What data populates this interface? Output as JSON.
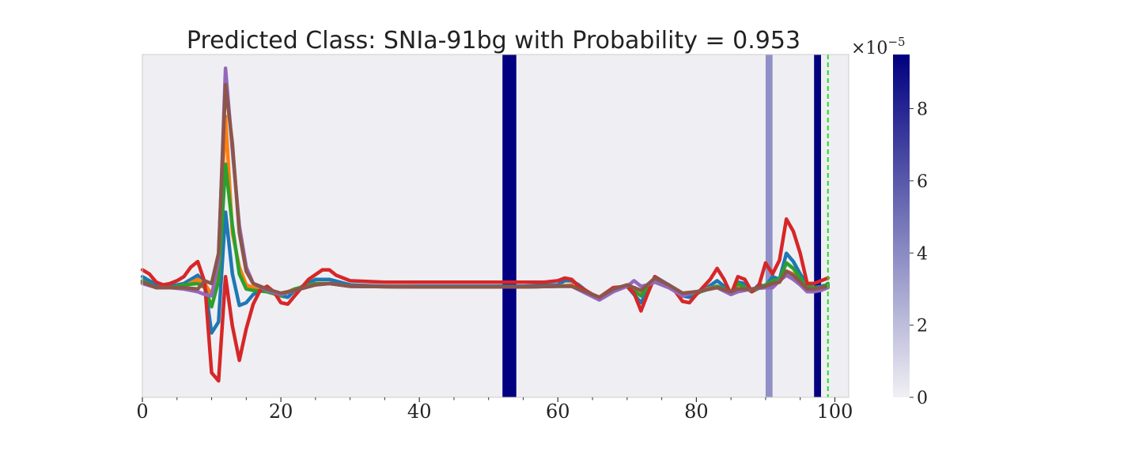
{
  "chart_data": {
    "type": "line",
    "title": "Predicted Class: SNIa-91bg with Probability = 0.953",
    "xlim": [
      0,
      102
    ],
    "ylim": [
      -8,
      17
    ],
    "x_ticks": [
      "0",
      "20",
      "40",
      "60",
      "80",
      "100"
    ],
    "x_tick_values": [
      0,
      20,
      40,
      60,
      80,
      100
    ],
    "x_minor_tick_values": [
      5,
      10,
      15,
      25,
      30,
      35,
      45,
      50,
      55,
      65,
      70,
      75,
      85,
      90,
      95
    ],
    "grid": false,
    "background_color": "#efeff3",
    "legend": "none",
    "attention_bands": [
      {
        "x_start": 52,
        "x_end": 54,
        "weight": 9.5
      },
      {
        "x_start": 90,
        "x_end": 91,
        "weight": 3.8
      },
      {
        "x_start": 97,
        "x_end": 98,
        "weight": 9.5
      }
    ],
    "vertical_marker": {
      "x": 99,
      "color": "#22dd22",
      "style": "dashed"
    },
    "colorbar": {
      "min": 0,
      "max": 9.5,
      "ticks": [
        "0",
        "2",
        "4",
        "6",
        "8"
      ],
      "tick_values": [
        0,
        2,
        4,
        6,
        8
      ],
      "exponent_base": "×10",
      "exponent_power": "−5",
      "color_low": "#f0f0f4",
      "color_high": "#000080"
    },
    "series": [
      {
        "color": "#1f77b4",
        "points": [
          [
            0,
            0.8
          ],
          [
            2,
            0.2
          ],
          [
            4,
            0.1
          ],
          [
            6,
            0.3
          ],
          [
            8,
            0.9
          ],
          [
            9,
            0.3
          ],
          [
            10,
            -3.3
          ],
          [
            11,
            -2.5
          ],
          [
            12,
            5.5
          ],
          [
            13,
            1
          ],
          [
            14,
            -1.3
          ],
          [
            15,
            -1.1
          ],
          [
            16,
            -0.5
          ],
          [
            18,
            0
          ],
          [
            20,
            -0.6
          ],
          [
            21,
            -0.7
          ],
          [
            22,
            -0.2
          ],
          [
            25,
            0.6
          ],
          [
            27,
            0.6
          ],
          [
            30,
            0.2
          ],
          [
            35,
            0.1
          ],
          [
            45,
            0.1
          ],
          [
            55,
            0.1
          ],
          [
            60,
            0.2
          ],
          [
            61,
            0.5
          ],
          [
            62,
            0.5
          ],
          [
            63,
            0.2
          ],
          [
            65,
            -0.6
          ],
          [
            66,
            -0.8
          ],
          [
            68,
            -0.2
          ],
          [
            70,
            0.1
          ],
          [
            72,
            -1.1
          ],
          [
            74,
            0.8
          ],
          [
            76,
            0.2
          ],
          [
            78,
            -0.6
          ],
          [
            79,
            -0.7
          ],
          [
            81,
            -0.2
          ],
          [
            83,
            0.5
          ],
          [
            84,
            0.1
          ],
          [
            85,
            -0.4
          ],
          [
            86,
            0.4
          ],
          [
            87,
            0.3
          ],
          [
            88,
            -0.3
          ],
          [
            89,
            0.2
          ],
          [
            90,
            0.1
          ],
          [
            91,
            0.8
          ],
          [
            92,
            0.6
          ],
          [
            93,
            2.5
          ],
          [
            94,
            1.9
          ],
          [
            95,
            1
          ],
          [
            96,
            0.2
          ],
          [
            97,
            0
          ],
          [
            99,
            0.2
          ]
        ]
      },
      {
        "color": "#ff7f0e",
        "points": [
          [
            0,
            0.4
          ],
          [
            2,
            0
          ],
          [
            4,
            0
          ],
          [
            6,
            0.1
          ],
          [
            8,
            0.6
          ],
          [
            9,
            0.3
          ],
          [
            10,
            -0.5
          ],
          [
            11,
            1.5
          ],
          [
            12,
            12.5
          ],
          [
            13,
            4
          ],
          [
            14,
            1.5
          ],
          [
            15,
            0.2
          ],
          [
            16,
            0
          ],
          [
            18,
            -0.2
          ],
          [
            20,
            -0.5
          ],
          [
            22,
            -0.1
          ],
          [
            25,
            0.3
          ],
          [
            27,
            0.3
          ],
          [
            30,
            0.1
          ],
          [
            40,
            0.05
          ],
          [
            55,
            0.05
          ],
          [
            60,
            0.1
          ],
          [
            62,
            0.2
          ],
          [
            64,
            -0.2
          ],
          [
            66,
            -0.8
          ],
          [
            68,
            -0.2
          ],
          [
            70,
            0.1
          ],
          [
            72,
            -0.4
          ],
          [
            74,
            0.6
          ],
          [
            76,
            0.2
          ],
          [
            78,
            -0.5
          ],
          [
            80,
            -0.3
          ],
          [
            83,
            0.1
          ],
          [
            85,
            -0.3
          ],
          [
            86,
            0.1
          ],
          [
            88,
            -0.1
          ],
          [
            90,
            0.1
          ],
          [
            91,
            0.3
          ],
          [
            92,
            0.4
          ],
          [
            93,
            1.2
          ],
          [
            94,
            1
          ],
          [
            95,
            0.5
          ],
          [
            96,
            0
          ],
          [
            98,
            -0.2
          ],
          [
            99,
            0
          ]
        ]
      },
      {
        "color": "#2ca02c",
        "points": [
          [
            0,
            0.5
          ],
          [
            2,
            0
          ],
          [
            4,
            0
          ],
          [
            6,
            0.2
          ],
          [
            8,
            0.3
          ],
          [
            9,
            0
          ],
          [
            10,
            -1.4
          ],
          [
            11,
            0.5
          ],
          [
            12,
            9
          ],
          [
            13,
            4.5
          ],
          [
            14,
            1
          ],
          [
            15,
            -0.1
          ],
          [
            16,
            -0.2
          ],
          [
            18,
            -0.3
          ],
          [
            20,
            -0.6
          ],
          [
            22,
            -0.1
          ],
          [
            25,
            0.3
          ],
          [
            27,
            0.3
          ],
          [
            30,
            0.1
          ],
          [
            40,
            0.05
          ],
          [
            55,
            0.05
          ],
          [
            60,
            0.1
          ],
          [
            62,
            0.1
          ],
          [
            64,
            -0.3
          ],
          [
            66,
            -0.7
          ],
          [
            68,
            -0.2
          ],
          [
            70,
            0.1
          ],
          [
            72,
            -0.6
          ],
          [
            74,
            0.7
          ],
          [
            76,
            0.2
          ],
          [
            78,
            -0.5
          ],
          [
            80,
            -0.4
          ],
          [
            83,
            0.1
          ],
          [
            85,
            -0.3
          ],
          [
            86,
            0.3
          ],
          [
            88,
            -0.3
          ],
          [
            90,
            0.2
          ],
          [
            91,
            0.5
          ],
          [
            92,
            0.6
          ],
          [
            93,
            1.8
          ],
          [
            94,
            1.4
          ],
          [
            95,
            0.7
          ],
          [
            96,
            0.1
          ],
          [
            98,
            -0.1
          ],
          [
            99,
            0.3
          ]
        ]
      },
      {
        "color": "#d62728",
        "points": [
          [
            0,
            1.3
          ],
          [
            1,
            1
          ],
          [
            2,
            0.4
          ],
          [
            3,
            0.2
          ],
          [
            4,
            0.3
          ],
          [
            5,
            0.5
          ],
          [
            6,
            0.8
          ],
          [
            7,
            1.5
          ],
          [
            8,
            1.9
          ],
          [
            9,
            0.4
          ],
          [
            10,
            -6.2
          ],
          [
            11,
            -6.8
          ],
          [
            12,
            0.8
          ],
          [
            13,
            -2.8
          ],
          [
            14,
            -5.3
          ],
          [
            15,
            -3
          ],
          [
            16,
            -1.2
          ],
          [
            17,
            -0.2
          ],
          [
            18,
            0.1
          ],
          [
            19,
            -0.3
          ],
          [
            20,
            -1.1
          ],
          [
            21,
            -1.2
          ],
          [
            22,
            -0.6
          ],
          [
            24,
            0.6
          ],
          [
            26,
            1.3
          ],
          [
            27,
            1.3
          ],
          [
            28,
            0.9
          ],
          [
            30,
            0.5
          ],
          [
            35,
            0.4
          ],
          [
            45,
            0.4
          ],
          [
            55,
            0.4
          ],
          [
            58,
            0.4
          ],
          [
            60,
            0.5
          ],
          [
            61,
            0.7
          ],
          [
            62,
            0.6
          ],
          [
            63,
            0.1
          ],
          [
            65,
            -0.5
          ],
          [
            66,
            -0.7
          ],
          [
            68,
            0
          ],
          [
            70,
            0.1
          ],
          [
            71,
            -0.4
          ],
          [
            72,
            -1.7
          ],
          [
            73,
            -0.4
          ],
          [
            74,
            0.8
          ],
          [
            76,
            0.1
          ],
          [
            77,
            -0.3
          ],
          [
            78,
            -1
          ],
          [
            79,
            -1.1
          ],
          [
            80,
            -0.5
          ],
          [
            82,
            0.6
          ],
          [
            83,
            1.4
          ],
          [
            84,
            0.6
          ],
          [
            85,
            -0.5
          ],
          [
            86,
            0.8
          ],
          [
            87,
            0.6
          ],
          [
            88,
            -0.3
          ],
          [
            89,
            0.1
          ],
          [
            90,
            1.8
          ],
          [
            91,
            1
          ],
          [
            92,
            2
          ],
          [
            93,
            5
          ],
          [
            94,
            4.1
          ],
          [
            95,
            2.5
          ],
          [
            96,
            0.3
          ],
          [
            97,
            0.3
          ],
          [
            99,
            0.7
          ]
        ]
      },
      {
        "color": "#9467bd",
        "points": [
          [
            0,
            0.3
          ],
          [
            2,
            0
          ],
          [
            4,
            0
          ],
          [
            6,
            -0.1
          ],
          [
            8,
            -0.3
          ],
          [
            9,
            -0.5
          ],
          [
            10,
            -0.6
          ],
          [
            11,
            2
          ],
          [
            12,
            16
          ],
          [
            13,
            10
          ],
          [
            14,
            4.5
          ],
          [
            15,
            1.5
          ],
          [
            16,
            0.3
          ],
          [
            18,
            -0.2
          ],
          [
            20,
            -0.5
          ],
          [
            22,
            -0.2
          ],
          [
            25,
            0.2
          ],
          [
            27,
            0.3
          ],
          [
            30,
            0.1
          ],
          [
            40,
            0.05
          ],
          [
            55,
            0.05
          ],
          [
            60,
            0.1
          ],
          [
            62,
            0.1
          ],
          [
            64,
            -0.4
          ],
          [
            66,
            -0.9
          ],
          [
            68,
            -0.3
          ],
          [
            70,
            0.1
          ],
          [
            71,
            0.5
          ],
          [
            72,
            0.1
          ],
          [
            73,
            0.2
          ],
          [
            74,
            0.4
          ],
          [
            76,
            0
          ],
          [
            78,
            -0.6
          ],
          [
            80,
            -0.3
          ],
          [
            83,
            0
          ],
          [
            85,
            -0.5
          ],
          [
            86,
            -0.3
          ],
          [
            88,
            -0.1
          ],
          [
            90,
            0
          ],
          [
            91,
            0
          ],
          [
            92,
            0.5
          ],
          [
            93,
            0.9
          ],
          [
            94,
            0.6
          ],
          [
            95,
            0.2
          ],
          [
            96,
            -0.3
          ],
          [
            97,
            -0.3
          ],
          [
            98,
            -0.2
          ],
          [
            99,
            0
          ]
        ]
      },
      {
        "color": "#8c564b",
        "points": [
          [
            0,
            0.4
          ],
          [
            2,
            0
          ],
          [
            4,
            0
          ],
          [
            6,
            0
          ],
          [
            8,
            -0.1
          ],
          [
            9,
            0.5
          ],
          [
            10,
            0.3
          ],
          [
            11,
            2.5
          ],
          [
            12,
            14.8
          ],
          [
            13,
            10.5
          ],
          [
            14,
            4
          ],
          [
            15,
            1.2
          ],
          [
            16,
            0.3
          ],
          [
            18,
            -0.1
          ],
          [
            20,
            -0.4
          ],
          [
            22,
            -0.2
          ],
          [
            25,
            0.2
          ],
          [
            27,
            0.3
          ],
          [
            30,
            0.1
          ],
          [
            40,
            0.05
          ],
          [
            55,
            0.05
          ],
          [
            60,
            0.1
          ],
          [
            62,
            0.1
          ],
          [
            64,
            -0.3
          ],
          [
            66,
            -0.7
          ],
          [
            68,
            -0.1
          ],
          [
            70,
            0.2
          ],
          [
            72,
            -0.2
          ],
          [
            74,
            0.7
          ],
          [
            76,
            0.2
          ],
          [
            78,
            -0.4
          ],
          [
            80,
            -0.3
          ],
          [
            83,
            0
          ],
          [
            85,
            -0.3
          ],
          [
            86,
            -0.1
          ],
          [
            88,
            -0.1
          ],
          [
            90,
            0.1
          ],
          [
            91,
            0.3
          ],
          [
            92,
            0.4
          ],
          [
            93,
            1.2
          ],
          [
            94,
            0.9
          ],
          [
            95,
            0.4
          ],
          [
            96,
            -0.1
          ],
          [
            97,
            -0.1
          ],
          [
            99,
            0.1
          ]
        ]
      }
    ]
  }
}
